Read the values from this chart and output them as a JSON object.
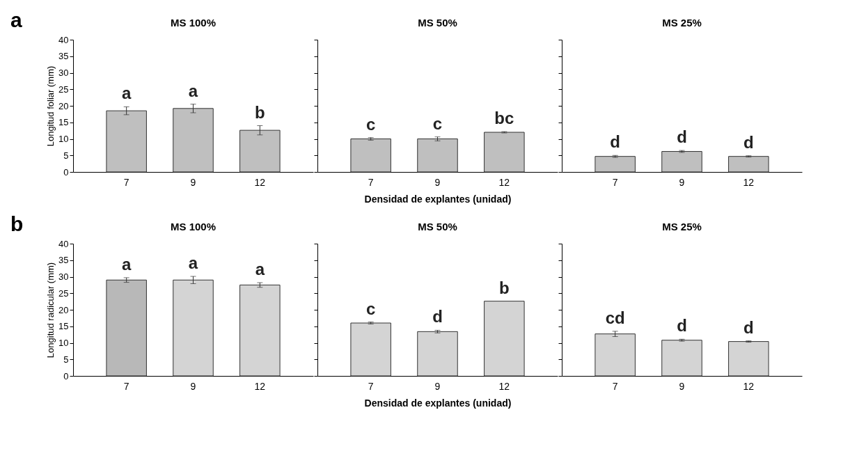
{
  "chart_data": [
    {
      "type": "bar",
      "title": "MS 100%",
      "ylabel": "Longitud foliar (mm)",
      "categories": [
        "7",
        "9",
        "12"
      ],
      "values": [
        18.5,
        19.2,
        12.6
      ],
      "errors": [
        1.2,
        1.3,
        1.4
      ],
      "colors": [
        "#bfbfbf",
        "#bfbfbf",
        "#bfbfbf"
      ],
      "ylim": [
        0,
        40
      ],
      "yticks": [
        0,
        5,
        10,
        15,
        20,
        25,
        30,
        35,
        40
      ],
      "grid": false,
      "annotations": [
        "a",
        "a",
        "a",
        "b"
      ]
    },
    {
      "type": "bar",
      "title": "MS 50%",
      "xlabel": "Densidad de explantes (unidad)",
      "categories": [
        "7",
        "9",
        "12"
      ],
      "values": [
        10,
        10,
        12
      ],
      "errors": [
        0.4,
        0.6,
        0.2
      ],
      "colors": [
        "#bfbfbf",
        "#bfbfbf",
        "#bfbfbf"
      ],
      "ylim": [
        0,
        40
      ],
      "yticks": [
        0,
        5,
        10,
        15,
        20,
        25,
        30,
        35,
        40
      ],
      "tick_labels": "x",
      "grid": false,
      "annotations": [
        "c",
        "c",
        "bc"
      ]
    },
    {
      "type": "bar",
      "title": "MS 25%",
      "categories": [
        "7",
        "9",
        "12"
      ],
      "values": [
        4.7,
        6.2,
        4.7
      ],
      "errors": [
        0.3,
        0.3,
        0.2
      ],
      "colors": [
        "#bfbfbf",
        "#bfbfbf",
        "#bfbfbf"
      ],
      "ylim": [
        0,
        40
      ],
      "yticks": [
        0,
        5,
        10,
        15,
        20,
        25,
        30,
        35,
        40
      ],
      "tick_labels": "x",
      "grid": false,
      "annotations": [
        "d",
        "d",
        "d"
      ]
    },
    {
      "type": "bar",
      "title": "MS 100%",
      "ylabel": "Longitud radicular (mm)",
      "categories": [
        "7",
        "9",
        "12"
      ],
      "values": [
        29,
        29,
        27.5
      ],
      "errors": [
        0.7,
        1.1,
        0.7
      ],
      "colors": [
        "#b8b8b8",
        "#d4d4d4",
        "#d4d4d4"
      ],
      "ylim": [
        0,
        40
      ],
      "yticks": [
        0,
        5,
        10,
        15,
        20,
        25,
        30,
        35,
        40
      ],
      "grid": false,
      "annotations": [
        "b",
        "a",
        "a",
        "a"
      ]
    },
    {
      "type": "bar",
      "title": "MS 50%",
      "xlabel": "Densidad de explantes (unidad)",
      "categories": [
        "7",
        "9",
        "12"
      ],
      "values": [
        16,
        13.4,
        22.6
      ],
      "errors": [
        0.3,
        0.4,
        null
      ],
      "colors": [
        "#d4d4d4",
        "#d4d4d4",
        "#d4d4d4"
      ],
      "ylim": [
        0,
        40
      ],
      "yticks": [
        0,
        5,
        10,
        15,
        20,
        25,
        30,
        35,
        40
      ],
      "tick_labels": "x",
      "grid": false,
      "annotations": [
        "c",
        "d",
        "b"
      ]
    },
    {
      "type": "bar",
      "title": "MS 25%",
      "categories": [
        "7",
        "9",
        "12"
      ],
      "values": [
        12.7,
        10.8,
        10.4
      ],
      "errors": [
        0.8,
        0.3,
        0.2
      ],
      "colors": [
        "#d4d4d4",
        "#d4d4d4",
        "#d4d4d4"
      ],
      "ylim": [
        0,
        40
      ],
      "yticks": [
        0,
        5,
        10,
        15,
        20,
        25,
        30,
        35,
        40
      ],
      "tick_labels": "x",
      "grid": false,
      "annotations": [
        "cd",
        "d",
        "d"
      ]
    }
  ]
}
